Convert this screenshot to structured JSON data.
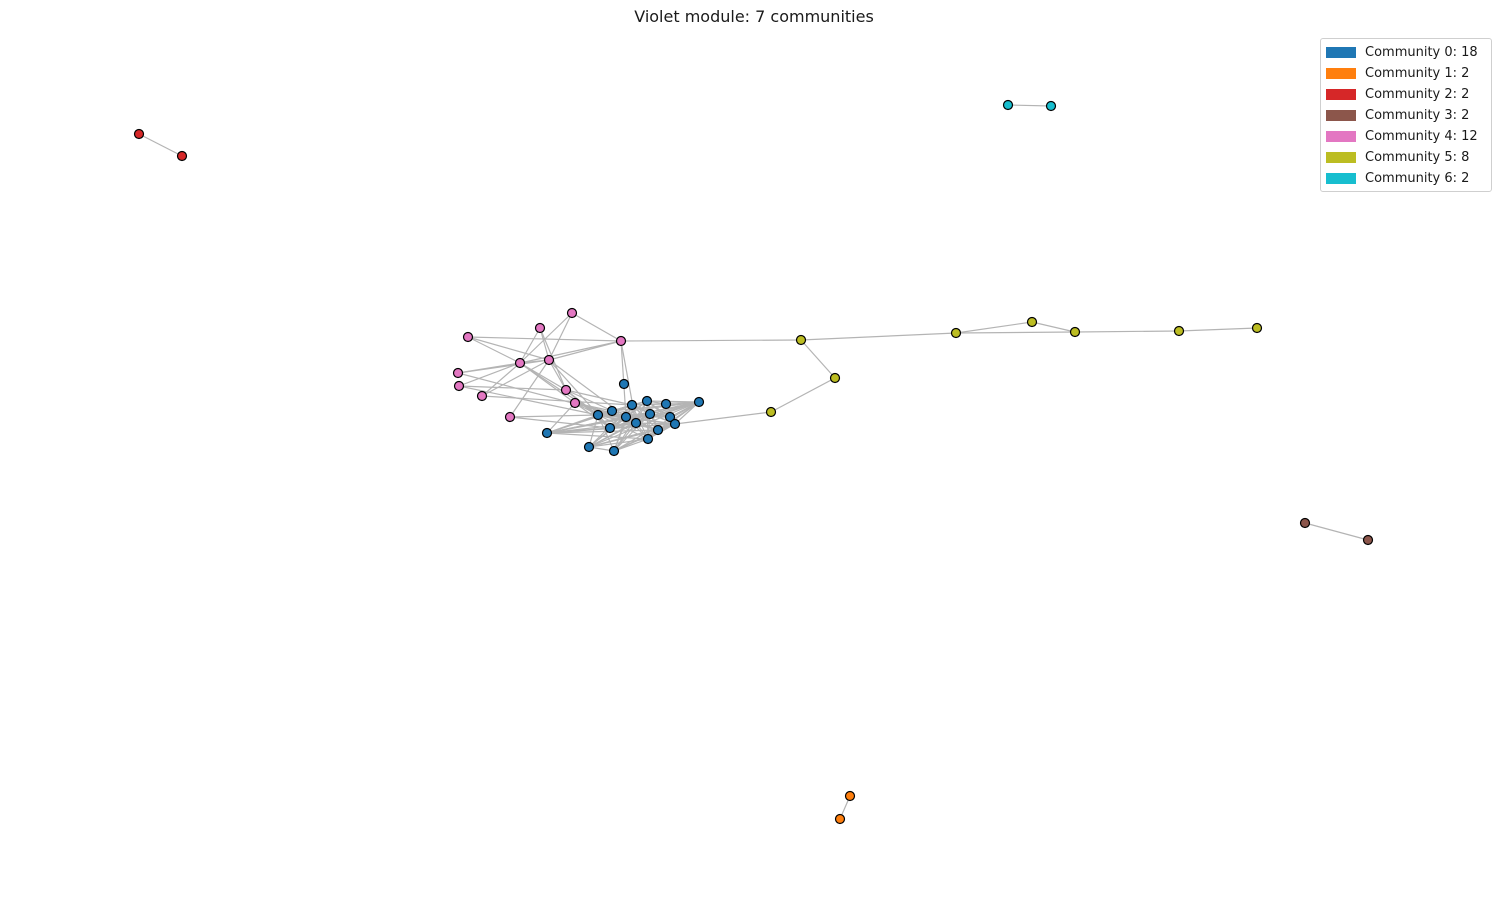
{
  "title": "Violet module: 7 communities",
  "colors": {
    "edge": "#b4b4b4",
    "node_outline": "#000000",
    "communities": [
      "#1f77b4",
      "#ff7f0e",
      "#d62728",
      "#8c564b",
      "#e377c2",
      "#bcbd22",
      "#17becf"
    ]
  },
  "legend": [
    {
      "label": "Community 0: 18",
      "color": "#1f77b4"
    },
    {
      "label": "Community 1: 2",
      "color": "#ff7f0e"
    },
    {
      "label": "Community 2: 2",
      "color": "#d62728"
    },
    {
      "label": "Community 3: 2",
      "color": "#8c564b"
    },
    {
      "label": "Community 4: 12",
      "color": "#e377c2"
    },
    {
      "label": "Community 5: 8",
      "color": "#bcbd22"
    },
    {
      "label": "Community 6: 2",
      "color": "#17becf"
    }
  ]
}
